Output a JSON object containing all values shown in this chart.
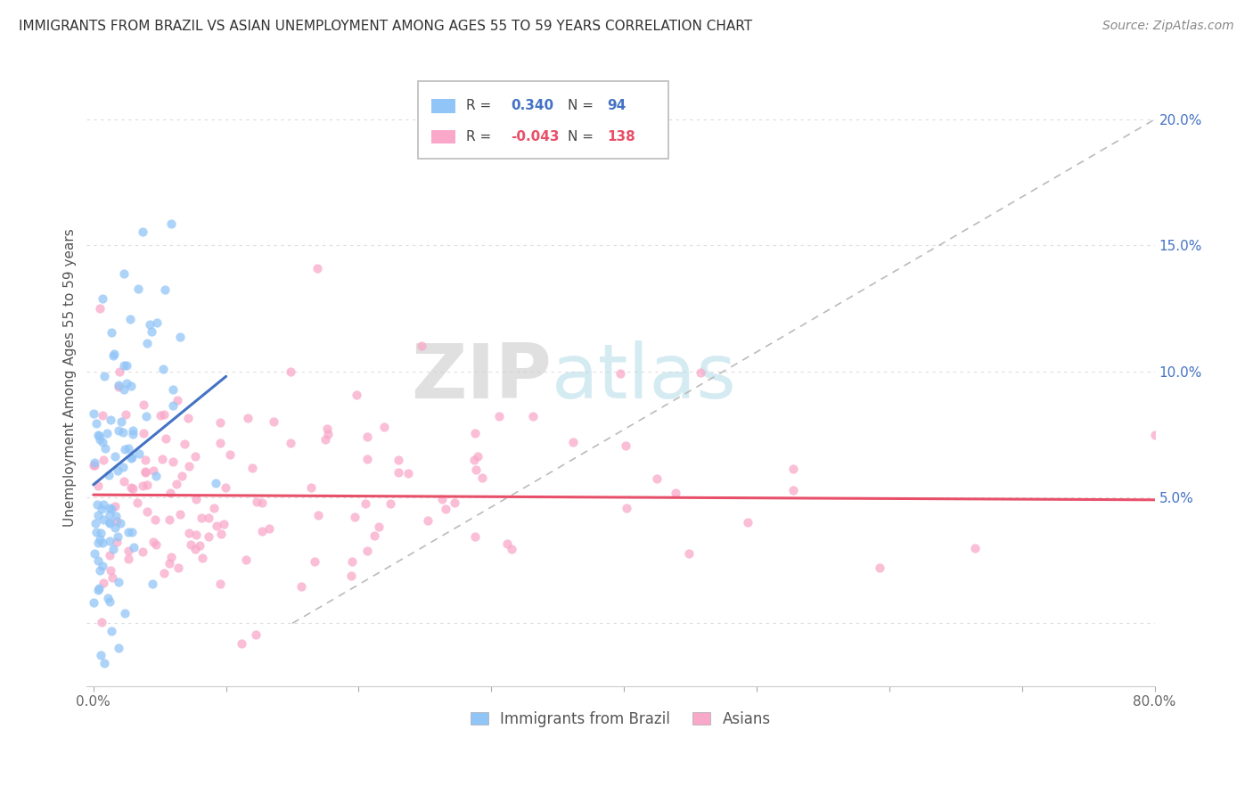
{
  "title": "IMMIGRANTS FROM BRAZIL VS ASIAN UNEMPLOYMENT AMONG AGES 55 TO 59 YEARS CORRELATION CHART",
  "source": "Source: ZipAtlas.com",
  "ylabel": "Unemployment Among Ages 55 to 59 years",
  "ytick_values": [
    0.0,
    0.05,
    0.1,
    0.15,
    0.2
  ],
  "ytick_labels": [
    "",
    "5.0%",
    "10.0%",
    "15.0%",
    "20.0%"
  ],
  "xlim": [
    -0.005,
    0.8
  ],
  "ylim": [
    -0.025,
    0.22
  ],
  "legend_brazil_r": "0.340",
  "legend_brazil_n": "94",
  "legend_asian_r": "-0.043",
  "legend_asian_n": "138",
  "color_brazil": "#92C5F7",
  "color_asian": "#F9A8C9",
  "color_brazil_line": "#4472C4",
  "color_asian_line": "#E8506A",
  "watermark_zip": "ZIP",
  "watermark_atlas": "atlas",
  "brazil_line_x0": 0.0,
  "brazil_line_y0": 0.055,
  "brazil_line_x1": 0.1,
  "brazil_line_y1": 0.098,
  "asian_line_x0": 0.0,
  "asian_line_y0": 0.051,
  "asian_line_x1": 0.8,
  "asian_line_y1": 0.049,
  "diag_line_x0": 0.15,
  "diag_line_y0": 0.0,
  "diag_line_x1": 0.8,
  "diag_line_y1": 0.2,
  "n_brazil": 94,
  "n_asian": 138,
  "seed": 12345
}
